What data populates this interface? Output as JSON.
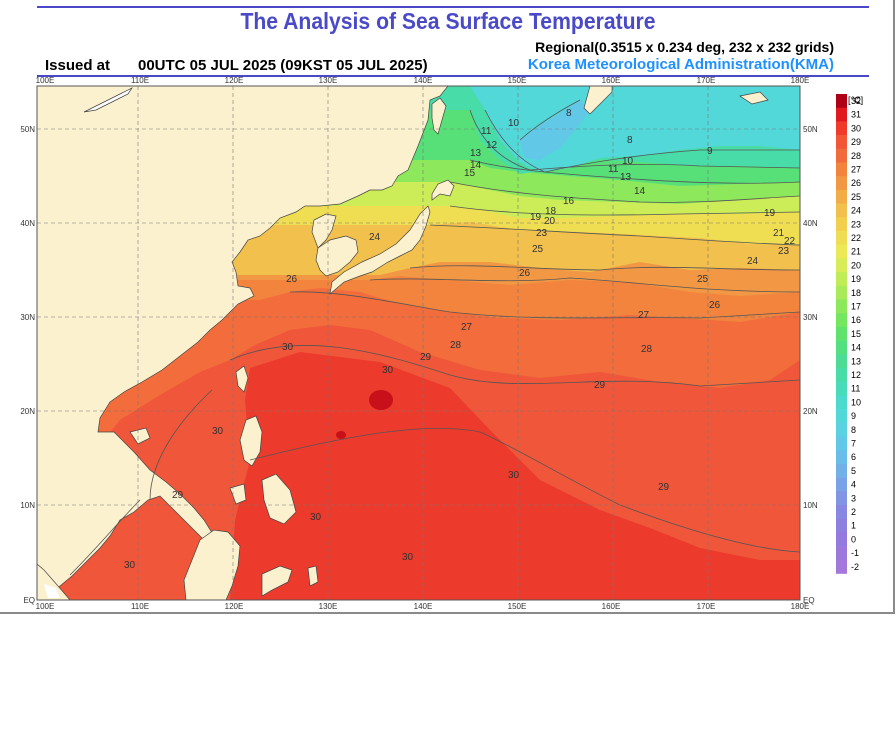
{
  "header": {
    "title": "The Analysis of Sea Surface Temperature",
    "issued_label": "Issued at",
    "issued_value": "00UTC 05 JUL 2025 (09KST 05 JUL 2025)",
    "regional": "Regional(0.3515 x 0.234 deg, 232 x 232 grids)",
    "agency": "Korea Meteorological Administration(KMA)"
  },
  "map": {
    "lon_labels": [
      "100E",
      "110E",
      "120E",
      "130E",
      "140E",
      "150E",
      "160E",
      "170E",
      "180E"
    ],
    "lat_labels": [
      "50N",
      "40N",
      "30N",
      "20N",
      "10N",
      "EQ"
    ],
    "contour_labels": [
      "8",
      "8",
      "9",
      "10",
      "10",
      "11",
      "11",
      "12",
      "13",
      "13",
      "14",
      "14",
      "15",
      "16",
      "18",
      "19",
      "19",
      "20",
      "21",
      "22",
      "23",
      "23",
      "24",
      "24",
      "25",
      "25",
      "26",
      "26",
      "26",
      "27",
      "27",
      "28",
      "28",
      "29",
      "29",
      "29",
      "29",
      "30",
      "30",
      "30",
      "30",
      "30",
      "30",
      "30"
    ]
  },
  "colorbar": {
    "unit": "[℃]",
    "levels": [
      "32",
      "31",
      "30",
      "29",
      "28",
      "27",
      "26",
      "25",
      "24",
      "23",
      "22",
      "21",
      "20",
      "19",
      "18",
      "17",
      "16",
      "15",
      "14",
      "13",
      "12",
      "11",
      "10",
      "9",
      "8",
      "7",
      "6",
      "5",
      "4",
      "3",
      "2",
      "1",
      "0",
      "-1",
      "-2"
    ],
    "colors": [
      "#b00018",
      "#e01820",
      "#f03a2c",
      "#f25636",
      "#f06c3c",
      "#f2843e",
      "#f29844",
      "#f2ac48",
      "#f2c04c",
      "#f2d04e",
      "#f0de52",
      "#ece856",
      "#d8ec58",
      "#c0ec58",
      "#a8ea5a",
      "#8ee85c",
      "#74e660",
      "#60e26c",
      "#52e080",
      "#4cdc96",
      "#48dca8",
      "#48dcba",
      "#4cdacc",
      "#52d8d8",
      "#5ad2e2",
      "#62c8e8",
      "#6abde8",
      "#72b0e8",
      "#7aa2e6",
      "#8294e4",
      "#8888e2",
      "#8e80de",
      "#947ade",
      "#9c78dc",
      "#a478da"
    ]
  }
}
